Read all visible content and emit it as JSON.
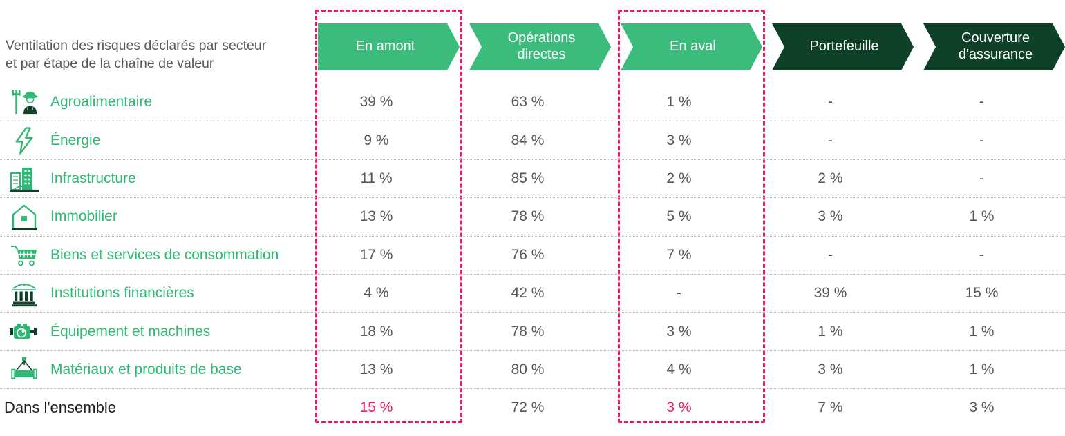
{
  "chart_data": {
    "type": "table",
    "title": "Ventilation des risques déclarés par secteur et par étape de la chaîne de valeur",
    "title_line1": "Ventilation des risques déclarés par secteur",
    "title_line2": "et par étape de la chaîne de valeur",
    "columns": [
      {
        "label": "En amont",
        "variant": "light",
        "highlighted": true
      },
      {
        "label": "Opérations directes",
        "variant": "light",
        "highlighted": false
      },
      {
        "label": "En aval",
        "variant": "light",
        "highlighted": true
      },
      {
        "label": "Portefeuille",
        "variant": "dark",
        "highlighted": false
      },
      {
        "label": "Couverture d'assurance",
        "variant": "dark",
        "highlighted": false
      }
    ],
    "rows": [
      {
        "icon": "farmer-icon",
        "label": "Agroalimentaire",
        "values": [
          "39 %",
          "63 %",
          "1 %",
          "-",
          "-"
        ]
      },
      {
        "icon": "lightning-icon",
        "label": "Énergie",
        "values": [
          "9 %",
          "84 %",
          "3 %",
          "-",
          "-"
        ]
      },
      {
        "icon": "buildings-icon",
        "label": "Infrastructure",
        "values": [
          "11 %",
          "85 %",
          "2 %",
          "2 %",
          "-"
        ]
      },
      {
        "icon": "house-icon",
        "label": "Immobilier",
        "values": [
          "13 %",
          "78 %",
          "5 %",
          "3 %",
          "1 %"
        ]
      },
      {
        "icon": "shopping-cart-icon",
        "label": "Biens et services de consommation",
        "values": [
          "17 %",
          "76 %",
          "7 %",
          "-",
          "-"
        ]
      },
      {
        "icon": "bank-icon",
        "label": "Institutions financières",
        "values": [
          "4 %",
          "42 %",
          "-",
          "39 %",
          "15 %"
        ]
      },
      {
        "icon": "engine-icon",
        "label": "Équipement et machines",
        "values": [
          "18 %",
          "78 %",
          "3 %",
          "1 %",
          "1 %"
        ]
      },
      {
        "icon": "pipe-icon",
        "label": "Matériaux et produits de base",
        "values": [
          "13 %",
          "80 %",
          "4 %",
          "3 %",
          "1 %"
        ]
      },
      {
        "icon": null,
        "overall": true,
        "pink_value_columns": [
          0,
          2
        ],
        "label": "Dans l'ensemble",
        "values": [
          "15 %",
          "72 %",
          "3 %",
          "7 %",
          "3 %"
        ]
      }
    ],
    "legend_position": "none",
    "grid": "dotted-row-dividers"
  },
  "colors": {
    "chip_light_green": "#3bbc7d",
    "chip_dark_green": "#0e4128",
    "sector_label_green": "#2eb873",
    "value_gray": "#54565a",
    "title_gray": "#58595b",
    "overall_text": "#1d1d1b",
    "highlight_pink": "#ed1a5e",
    "row_divider_gray": "#b5b5b5",
    "chip_text": "#ffffff"
  }
}
